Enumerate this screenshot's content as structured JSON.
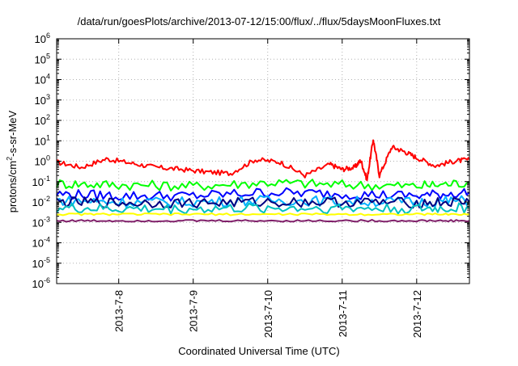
{
  "chart_data": {
    "type": "line",
    "title": "/data/run/goesPlots/archive/2013-07-12/15:00/flux/../flux/5daysMoonFluxes.txt",
    "xlabel": "Coordinated Universal Time (UTC)",
    "ylabel": {
      "prefix": "protons/cm",
      "sup": "2",
      "suffix": "-s-sr-MeV"
    },
    "yscale": "log",
    "ylim": [
      1e-06,
      1000000.0
    ],
    "xlim": [
      "2013-07-07 04:00",
      "2013-07-12 17:00"
    ],
    "y_ticks": [
      {
        "base": "10",
        "exp": "-6",
        "value": 1e-06
      },
      {
        "base": "10",
        "exp": "-5",
        "value": 1e-05
      },
      {
        "base": "10",
        "exp": "-4",
        "value": 0.0001
      },
      {
        "base": "10",
        "exp": "-3",
        "value": 0.001
      },
      {
        "base": "10",
        "exp": "-2",
        "value": 0.01
      },
      {
        "base": "10",
        "exp": "-1",
        "value": 0.1
      },
      {
        "base": "10",
        "exp": "0",
        "value": 1
      },
      {
        "base": "10",
        "exp": "1",
        "value": 10
      },
      {
        "base": "10",
        "exp": "2",
        "value": 100
      },
      {
        "base": "10",
        "exp": "3",
        "value": 1000
      },
      {
        "base": "10",
        "exp": "4",
        "value": 10000
      },
      {
        "base": "10",
        "exp": "5",
        "value": 100000
      },
      {
        "base": "10",
        "exp": "6",
        "value": 1000000
      }
    ],
    "x_ticks": [
      "2013-7-8",
      "2013-7-9",
      "2013-7-10",
      "2013-7-11",
      "2013-7-12"
    ],
    "grid": true,
    "legend": "none",
    "series": [
      {
        "color": "#ff0000",
        "x": [
          "2013-07-07 04:00",
          "2013-07-07 12:00",
          "2013-07-07 20:00",
          "2013-07-08 04:00",
          "2013-07-08 12:00",
          "2013-07-08 20:00",
          "2013-07-09 04:00",
          "2013-07-09 12:00",
          "2013-07-09 20:00",
          "2013-07-10 04:00",
          "2013-07-10 12:00",
          "2013-07-10 20:00",
          "2013-07-11 00:00",
          "2013-07-11 04:00",
          "2013-07-11 06:00",
          "2013-07-11 08:00",
          "2013-07-11 10:00",
          "2013-07-11 12:00",
          "2013-07-11 16:00",
          "2013-07-11 20:00",
          "2013-07-12 00:00",
          "2013-07-12 06:00",
          "2013-07-12 12:00",
          "2013-07-12 17:00"
        ],
        "y": [
          0.9,
          0.5,
          1.3,
          0.8,
          0.5,
          0.4,
          0.3,
          0.25,
          1.2,
          0.9,
          0.2,
          0.7,
          0.4,
          0.5,
          1.1,
          0.12,
          12,
          0.2,
          5,
          3,
          1.5,
          0.6,
          1.0,
          1.2
        ]
      },
      {
        "color": "#00ff00",
        "x": [
          "2013-07-07 04:00",
          "2013-07-08 00:00",
          "2013-07-09 00:00",
          "2013-07-10 00:00",
          "2013-07-11 00:00",
          "2013-07-12 00:00",
          "2013-07-12 17:00"
        ],
        "y": [
          0.08,
          0.07,
          0.06,
          0.09,
          0.07,
          0.06,
          0.09
        ]
      },
      {
        "color": "#0000ff",
        "x": [
          "2013-07-07 04:00",
          "2013-07-08 00:00",
          "2013-07-09 00:00",
          "2013-07-10 00:00",
          "2013-07-11 00:00",
          "2013-07-12 00:00",
          "2013-07-12 17:00"
        ],
        "y": [
          0.025,
          0.02,
          0.02,
          0.03,
          0.025,
          0.02,
          0.03
        ]
      },
      {
        "color": "#00b0ff",
        "x": [
          "2013-07-07 04:00",
          "2013-07-08 00:00",
          "2013-07-09 00:00",
          "2013-07-10 00:00",
          "2013-07-11 00:00",
          "2013-07-12 00:00",
          "2013-07-12 17:00"
        ],
        "y": [
          0.012,
          0.01,
          0.01,
          0.012,
          0.011,
          0.01,
          0.012
        ]
      },
      {
        "color": "#000080",
        "x": [
          "2013-07-07 04:00",
          "2013-07-08 00:00",
          "2013-07-09 00:00",
          "2013-07-10 00:00",
          "2013-07-11 00:00",
          "2013-07-12 00:00",
          "2013-07-12 17:00"
        ],
        "y": [
          0.01,
          0.009,
          0.009,
          0.01,
          0.01,
          0.009,
          0.01
        ]
      },
      {
        "color": "#00c0c0",
        "x": [
          "2013-07-07 04:00",
          "2013-07-08 00:00",
          "2013-07-09 00:00",
          "2013-07-10 00:00",
          "2013-07-11 00:00",
          "2013-07-12 00:00",
          "2013-07-12 17:00"
        ],
        "y": [
          0.005,
          0.0045,
          0.0045,
          0.005,
          0.005,
          0.0045,
          0.005
        ]
      },
      {
        "color": "#ffff00",
        "x": [
          "2013-07-07 04:00",
          "2013-07-08 00:00",
          "2013-07-09 00:00",
          "2013-07-10 00:00",
          "2013-07-11 00:00",
          "2013-07-12 00:00",
          "2013-07-12 17:00"
        ],
        "y": [
          0.0025,
          0.0025,
          0.0025,
          0.0025,
          0.0025,
          0.0025,
          0.0025
        ]
      },
      {
        "color": "#80206a",
        "x": [
          "2013-07-07 04:00",
          "2013-07-08 00:00",
          "2013-07-09 00:00",
          "2013-07-10 00:00",
          "2013-07-11 00:00",
          "2013-07-12 00:00",
          "2013-07-12 17:00"
        ],
        "y": [
          0.0012,
          0.0012,
          0.0012,
          0.0012,
          0.0012,
          0.0012,
          0.0012
        ]
      }
    ]
  }
}
